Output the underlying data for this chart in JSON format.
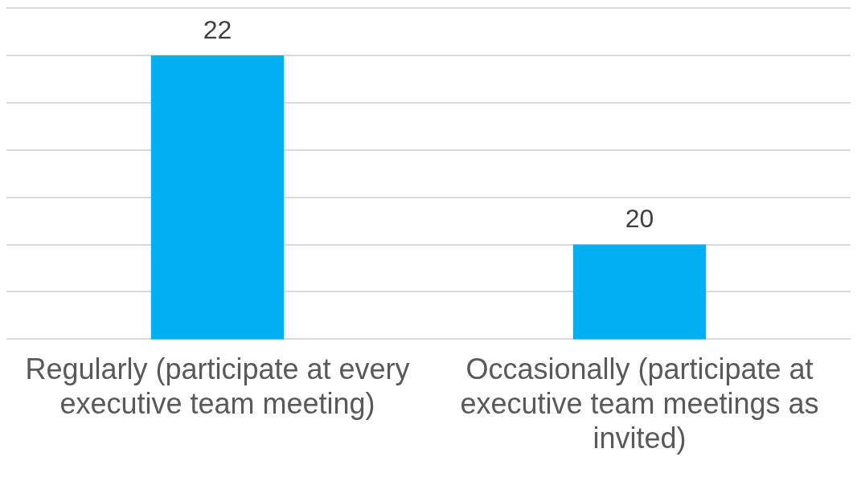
{
  "chart_data": {
    "type": "bar",
    "categories": [
      "Regularly (participate at every executive team meeting)",
      "Occasionally (participate at executive team meetings as invited)"
    ],
    "values": [
      22,
      20
    ],
    "color": "#00b0f0",
    "ylim": [
      19,
      22.5
    ],
    "yticks": [
      {
        "value": 19,
        "label": null
      },
      {
        "value": 19.5,
        "label": null
      },
      {
        "value": 20,
        "label": null
      },
      {
        "value": 20.5,
        "label": null
      },
      {
        "value": 21,
        "label": null
      },
      {
        "value": 21.5,
        "label": null
      },
      {
        "value": 22,
        "label": null
      },
      {
        "value": 22.5,
        "label": null
      }
    ],
    "tick_labels": "x",
    "grid": "y",
    "data_labels": true
  }
}
